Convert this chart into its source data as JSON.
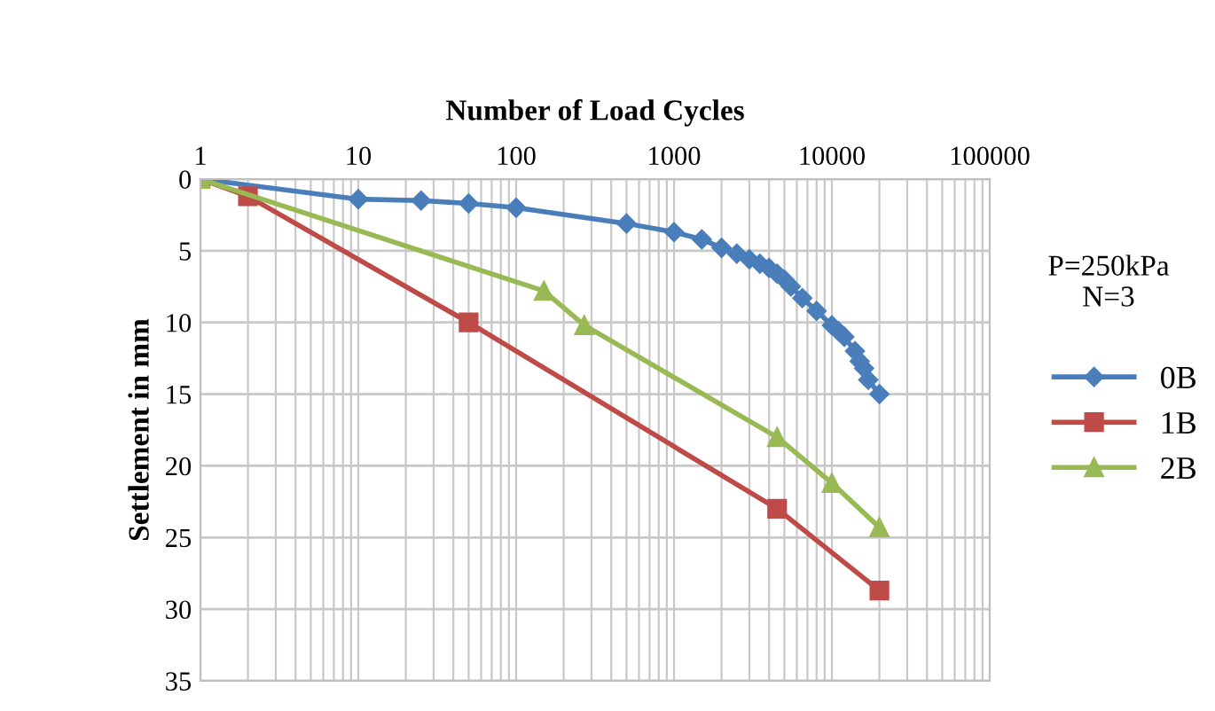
{
  "chart_data": {
    "type": "line",
    "title": "Number of Load Cycles",
    "ylabel": "Settlement in mm",
    "log": "x",
    "xlim": [
      1,
      100000
    ],
    "xticks": [
      1,
      10,
      100,
      1000,
      10000,
      100000
    ],
    "ylim": [
      35,
      0
    ],
    "yticks": [
      0,
      5,
      10,
      15,
      20,
      25,
      30,
      35
    ],
    "grid": true,
    "legend": "right",
    "annotations": [
      "P=250kPa\nN=3"
    ],
    "series": [
      {
        "name": "0B",
        "color": "#4a7ebb",
        "marker": "diamond",
        "x": [
          1,
          10,
          25,
          50,
          100,
          500,
          1000,
          1500,
          2000,
          2500,
          3000,
          3500,
          4000,
          4500,
          5000,
          5500,
          6500,
          8000,
          10000,
          11000,
          12000,
          14000,
          15000,
          16000,
          17000,
          20000
        ],
        "values": [
          0,
          1.4,
          1.5,
          1.7,
          2.0,
          3.1,
          3.7,
          4.2,
          4.8,
          5.2,
          5.6,
          5.9,
          6.2,
          6.6,
          7.0,
          7.5,
          8.3,
          9.2,
          10.2,
          10.6,
          11.0,
          12.0,
          12.7,
          13.2,
          14.0,
          15.0
        ]
      },
      {
        "name": "1B",
        "color": "#be4b48",
        "marker": "square",
        "x": [
          1,
          2,
          50,
          4500,
          20000
        ],
        "values": [
          0,
          1.2,
          10,
          23,
          28.7
        ]
      },
      {
        "name": "2B",
        "color": "#98b954",
        "marker": "triangle",
        "x": [
          1,
          150,
          270,
          4500,
          10000,
          20000
        ],
        "values": [
          0,
          7.8,
          10.2,
          18,
          21.2,
          24.3
        ]
      }
    ]
  }
}
